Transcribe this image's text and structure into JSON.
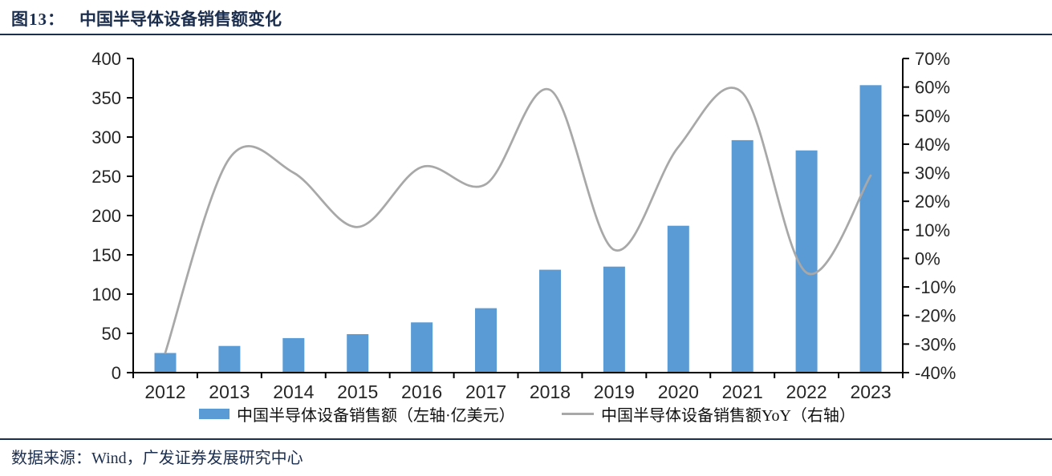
{
  "figure": {
    "number_label": "图13：",
    "title": "中国半导体设备销售额变化",
    "source": "数据来源：Wind，广发证券发展研究中心"
  },
  "colors": {
    "heading_navy": "#1C2E4E",
    "bar_blue": "#5B9BD5",
    "line_gray": "#A8A8A8",
    "axis_line": "#000000",
    "tick_text": "#262626"
  },
  "chart_data": {
    "type": "combo-bar-line",
    "title": "中国半导体设备销售额变化",
    "categories": [
      "2012",
      "2013",
      "2014",
      "2015",
      "2016",
      "2017",
      "2018",
      "2019",
      "2020",
      "2021",
      "2022",
      "2023"
    ],
    "series": [
      {
        "name": "中国半导体设备销售额（左轴·亿美元）",
        "type": "bar",
        "axis": "left",
        "unit": "亿美元",
        "color": "#5B9BD5",
        "values": [
          25,
          34,
          44,
          49,
          64,
          82,
          131,
          135,
          187,
          296,
          283,
          366
        ]
      },
      {
        "name": "中国半导体设备销售额YoY（右轴）",
        "type": "line",
        "smooth": true,
        "axis": "right",
        "unit": "%",
        "color": "#A8A8A8",
        "values": [
          -33,
          35,
          30,
          11,
          32,
          26,
          59,
          3,
          39,
          58,
          -5,
          29
        ]
      }
    ],
    "left_axis": {
      "min": 0,
      "max": 400,
      "step": 50,
      "tick_labels": [
        "0",
        "50",
        "100",
        "150",
        "200",
        "250",
        "300",
        "350",
        "400"
      ]
    },
    "right_axis": {
      "min": -40,
      "max": 70,
      "step": 10,
      "tick_labels": [
        "-40%",
        "-30%",
        "-20%",
        "-10%",
        "0%",
        "10%",
        "20%",
        "30%",
        "40%",
        "50%",
        "60%",
        "70%"
      ]
    },
    "legend_position": "bottom",
    "grid": false
  }
}
